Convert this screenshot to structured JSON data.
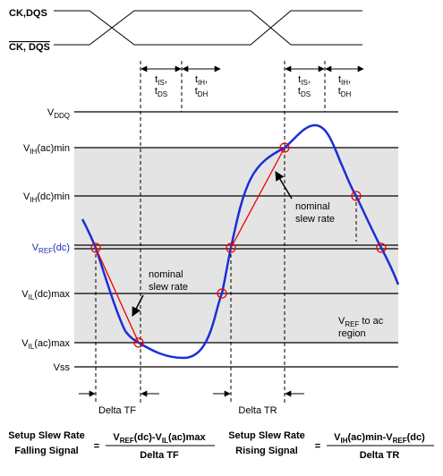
{
  "signals": {
    "clock": "CK,DQS",
    "clock_inv": "CK, DQS"
  },
  "timing": [
    [
      [
        {
          "t": "t"
        },
        {
          "s": "IS"
        },
        {
          "t": ","
        }
      ],
      [
        {
          "t": "t"
        },
        {
          "s": "DS"
        }
      ]
    ],
    [
      [
        {
          "t": "t"
        },
        {
          "s": "IH"
        },
        {
          "t": ","
        }
      ],
      [
        {
          "t": "t"
        },
        {
          "s": "DH"
        }
      ]
    ],
    [
      [
        {
          "t": "t"
        },
        {
          "s": "IS"
        },
        {
          "t": ","
        }
      ],
      [
        {
          "t": "t"
        },
        {
          "s": "DS"
        }
      ]
    ],
    [
      [
        {
          "t": "t"
        },
        {
          "s": "IH"
        },
        {
          "t": ","
        }
      ],
      [
        {
          "t": "t"
        },
        {
          "s": "DH"
        }
      ]
    ]
  ],
  "levels": [
    [
      {
        "t": "V"
      },
      {
        "s": "DDQ"
      }
    ],
    [
      {
        "t": "V"
      },
      {
        "s": "IH"
      },
      {
        "t": "(ac)min"
      }
    ],
    [
      {
        "t": "V"
      },
      {
        "s": "IH"
      },
      {
        "t": "(dc)min"
      }
    ],
    [
      {
        "t": "V"
      },
      {
        "s": "REF"
      },
      {
        "t": "(dc)"
      }
    ],
    [
      {
        "t": "V"
      },
      {
        "s": "IL"
      },
      {
        "t": "(dc)max"
      }
    ],
    [
      {
        "t": "V"
      },
      {
        "s": "IL"
      },
      {
        "t": "(ac)max"
      }
    ],
    [
      {
        "t": "Vss"
      }
    ]
  ],
  "annotations": {
    "nominal_falling": [
      "nominal",
      "slew rate"
    ],
    "nominal_rising": [
      "nominal",
      "slew rate"
    ],
    "region": [
      [
        {
          "t": "V"
        },
        {
          "s": "REF"
        },
        {
          "t": " to ac"
        }
      ],
      [
        {
          "t": "region"
        }
      ]
    ]
  },
  "deltas": [
    "Delta TF",
    "Delta TR"
  ],
  "formulas": [
    {
      "label": [
        "Setup Slew Rate",
        "Falling Signal"
      ],
      "equals": "=",
      "numerator": [
        {
          "t": "V"
        },
        {
          "s": "REF"
        },
        {
          "t": "(dc)-V"
        },
        {
          "s": "IL"
        },
        {
          "t": "(ac)max"
        }
      ],
      "denominator": "Delta TF"
    },
    {
      "label": [
        "Setup Slew Rate",
        "Rising Signal"
      ],
      "equals": "=",
      "numerator": [
        {
          "t": "V"
        },
        {
          "s": "IH"
        },
        {
          "t": "(ac)min-V"
        },
        {
          "s": "REF"
        },
        {
          "t": "(dc)"
        }
      ],
      "denominator": "Delta TR"
    }
  ]
}
